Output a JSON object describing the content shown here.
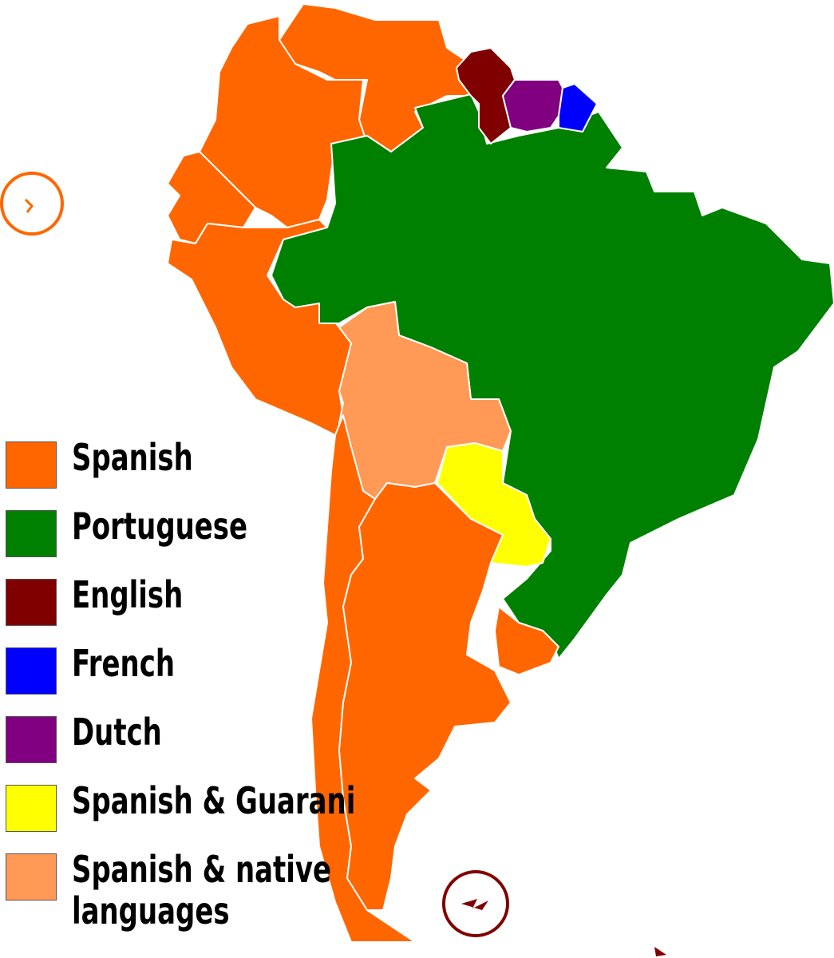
{
  "legend": {
    "items": [
      {
        "label": "Spanish",
        "color": "#ff6600"
      },
      {
        "label": "Portuguese",
        "color": "#008000"
      },
      {
        "label": "English",
        "color": "#800000"
      },
      {
        "label": "French",
        "color": "#0000ff"
      },
      {
        "label": "Dutch",
        "color": "#800080"
      },
      {
        "label": "Spanish & Guarani",
        "color": "#ffff00"
      },
      {
        "label": "Spanish & native languages",
        "color": "#ff9955"
      }
    ]
  }
}
